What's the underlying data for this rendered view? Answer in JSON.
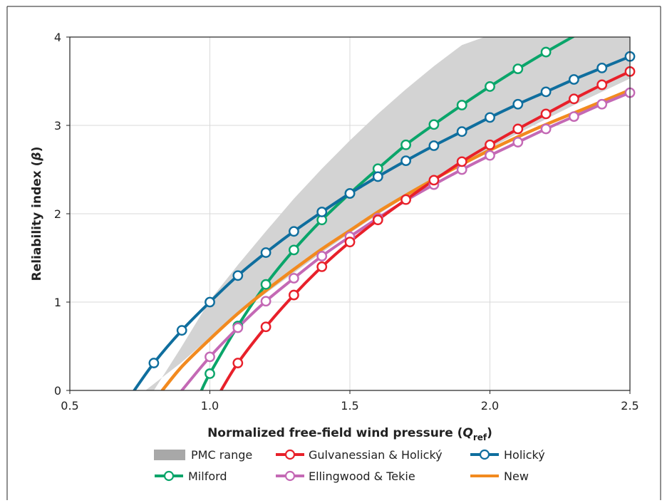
{
  "chart_data": {
    "type": "line",
    "xlabel_main": "Normalized free-field wind pressure (",
    "xlabel_var": "Q",
    "xlabel_sub": "ref",
    "xlabel_close": ")",
    "ylabel_main": "Reliability index (",
    "ylabel_var": "β",
    "ylabel_close": ")",
    "xlim": [
      0.5,
      2.5
    ],
    "ylim": [
      0,
      4
    ],
    "xticks": [
      {
        "value": 0.5,
        "label": "0.5"
      },
      {
        "value": 1.0,
        "label": "1.0"
      },
      {
        "value": 1.5,
        "label": "1.5"
      },
      {
        "value": 2.0,
        "label": "2.0"
      },
      {
        "value": 2.5,
        "label": "2.5"
      }
    ],
    "yticks": [
      {
        "value": 0,
        "label": "0"
      },
      {
        "value": 1,
        "label": "1"
      },
      {
        "value": 2,
        "label": "2"
      },
      {
        "value": 3,
        "label": "3"
      },
      {
        "value": 4,
        "label": "4"
      }
    ],
    "grid": true,
    "band": {
      "name": "PMC range",
      "color": "#d3d3d3",
      "lower": [
        [
          0.77,
          0
        ],
        [
          0.9,
          0.32
        ],
        [
          1.0,
          0.6
        ],
        [
          1.1,
          0.86
        ],
        [
          1.2,
          1.1
        ],
        [
          1.3,
          1.33
        ],
        [
          1.4,
          1.56
        ],
        [
          1.5,
          1.78
        ],
        [
          1.6,
          1.99
        ],
        [
          1.7,
          2.19
        ],
        [
          1.8,
          2.38
        ],
        [
          1.9,
          2.56
        ],
        [
          2.0,
          2.74
        ],
        [
          2.1,
          2.91
        ],
        [
          2.2,
          3.07
        ],
        [
          2.3,
          3.23
        ],
        [
          2.4,
          3.38
        ],
        [
          2.5,
          3.53
        ]
      ],
      "upper": [
        [
          0.8,
          0
        ],
        [
          0.9,
          0.5
        ],
        [
          1.0,
          1.02
        ],
        [
          1.1,
          1.42
        ],
        [
          1.2,
          1.8
        ],
        [
          1.3,
          2.17
        ],
        [
          1.4,
          2.51
        ],
        [
          1.5,
          2.83
        ],
        [
          1.6,
          3.13
        ],
        [
          1.7,
          3.41
        ],
        [
          1.8,
          3.67
        ],
        [
          1.9,
          3.91
        ],
        [
          1.98,
          4.0
        ],
        [
          2.5,
          4.0
        ]
      ]
    },
    "series": [
      {
        "name": "Milford",
        "color": "#0aa56a",
        "markers": true,
        "x": [
          0.97,
          1.0,
          1.1,
          1.2,
          1.3,
          1.4,
          1.5,
          1.6,
          1.7,
          1.8,
          1.9,
          2.0,
          2.1,
          2.2,
          2.3
        ],
        "y": [
          0,
          0.19,
          0.73,
          1.2,
          1.59,
          1.93,
          2.23,
          2.51,
          2.78,
          3.01,
          3.23,
          3.44,
          3.64,
          3.83,
          4.01
        ],
        "marker_x": [
          1.0,
          1.1,
          1.2,
          1.3,
          1.4,
          1.5,
          1.6,
          1.7,
          1.8,
          1.9,
          2.0,
          2.1,
          2.2
        ]
      },
      {
        "name": "Holický",
        "color": "#0f6e9e",
        "markers": true,
        "x": [
          0.73,
          0.8,
          0.9,
          1.0,
          1.1,
          1.2,
          1.3,
          1.4,
          1.5,
          1.6,
          1.7,
          1.8,
          1.9,
          2.0,
          2.1,
          2.2,
          2.3,
          2.4,
          2.5
        ],
        "y": [
          0,
          0.31,
          0.68,
          1.0,
          1.3,
          1.56,
          1.8,
          2.02,
          2.23,
          2.42,
          2.6,
          2.77,
          2.93,
          3.09,
          3.24,
          3.38,
          3.52,
          3.65,
          3.78
        ],
        "marker_x": [
          0.8,
          0.9,
          1.0,
          1.1,
          1.2,
          1.3,
          1.4,
          1.5,
          1.6,
          1.7,
          1.8,
          1.9,
          2.0,
          2.1,
          2.2,
          2.3,
          2.4,
          2.5
        ]
      },
      {
        "name": "Ellingwood & Tekie",
        "color": "#c469b5",
        "markers": true,
        "x": [
          0.9,
          1.0,
          1.1,
          1.2,
          1.3,
          1.4,
          1.5,
          1.6,
          1.7,
          1.8,
          1.9,
          2.0,
          2.1,
          2.2,
          2.3,
          2.4,
          2.5
        ],
        "y": [
          0,
          0.38,
          0.71,
          1.01,
          1.27,
          1.52,
          1.74,
          1.95,
          2.15,
          2.33,
          2.5,
          2.66,
          2.81,
          2.96,
          3.1,
          3.24,
          3.37
        ],
        "marker_x": [
          1.0,
          1.1,
          1.2,
          1.3,
          1.4,
          1.5,
          1.6,
          1.8,
          1.9,
          2.0,
          2.1,
          2.2,
          2.3,
          2.4,
          2.5
        ]
      },
      {
        "name": "Gulvanessian & Holický",
        "color": "#e8202a",
        "markers": true,
        "x": [
          1.04,
          1.1,
          1.2,
          1.3,
          1.4,
          1.5,
          1.6,
          1.7,
          1.8,
          1.9,
          2.0,
          2.1,
          2.2,
          2.3,
          2.4,
          2.5
        ],
        "y": [
          0,
          0.31,
          0.72,
          1.08,
          1.4,
          1.68,
          1.93,
          2.16,
          2.38,
          2.59,
          2.78,
          2.96,
          3.13,
          3.3,
          3.46,
          3.61
        ],
        "marker_x": [
          1.1,
          1.2,
          1.3,
          1.4,
          1.5,
          1.6,
          1.7,
          1.8,
          1.9,
          2.0,
          2.1,
          2.2,
          2.3,
          2.4,
          2.5
        ]
      },
      {
        "name": "New",
        "color": "#f28a1f",
        "markers": false,
        "x": [
          0.83,
          0.9,
          1.0,
          1.1,
          1.2,
          1.3,
          1.4,
          1.5,
          1.6,
          1.7,
          1.8,
          1.9,
          2.0,
          2.1,
          2.2,
          2.3,
          2.4,
          2.5
        ],
        "y": [
          0,
          0.27,
          0.58,
          0.87,
          1.13,
          1.37,
          1.6,
          1.81,
          2.02,
          2.21,
          2.39,
          2.56,
          2.72,
          2.87,
          3.01,
          3.14,
          3.27,
          3.4
        ],
        "marker_x": []
      }
    ],
    "legend": {
      "placement": "bottom",
      "items": [
        {
          "label": "PMC range",
          "kind": "patch",
          "color": "#a8a8a8"
        },
        {
          "label": "Gulvanessian & Holický",
          "kind": "line-marker",
          "color": "#e8202a"
        },
        {
          "label": "Holický",
          "kind": "line-marker",
          "color": "#0f6e9e"
        },
        {
          "label": "Milford",
          "kind": "line-marker",
          "color": "#0aa56a"
        },
        {
          "label": "Ellingwood & Tekie",
          "kind": "line-marker",
          "color": "#c469b5"
        },
        {
          "label": "New",
          "kind": "line",
          "color": "#f28a1f"
        }
      ]
    }
  }
}
